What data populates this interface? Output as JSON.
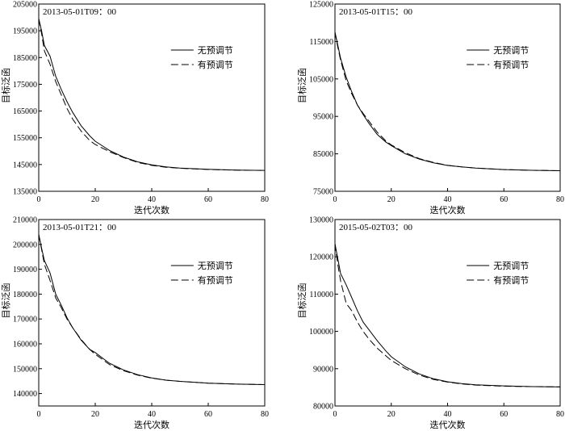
{
  "chart_data": [
    {
      "type": "line",
      "title": "2013-05-01T09：00",
      "xlabel": "迭代次数",
      "ylabel": "目标泛函",
      "xlim": [
        0,
        80
      ],
      "ylim": [
        135000,
        205000
      ],
      "xticks": [
        0,
        20,
        40,
        60,
        80
      ],
      "yticks": [
        135000,
        145000,
        155000,
        165000,
        175000,
        185000,
        195000,
        205000
      ],
      "legend": "center-right",
      "series": [
        {
          "name": "无预调节",
          "style": "solid",
          "x": [
            0,
            1,
            2,
            4,
            6,
            8,
            10,
            12,
            15,
            18,
            20,
            25,
            30,
            35,
            40,
            45,
            50,
            60,
            70,
            80
          ],
          "values": [
            199500,
            195000,
            189500,
            185500,
            178000,
            173000,
            168500,
            164500,
            159500,
            155800,
            153700,
            150300,
            147800,
            146000,
            144900,
            144100,
            143700,
            143200,
            142900,
            142800
          ]
        },
        {
          "name": "有预调节",
          "style": "dashed",
          "x": [
            0,
            1,
            2,
            4,
            6,
            8,
            10,
            12,
            15,
            18,
            20,
            25,
            30,
            35,
            40,
            45,
            50,
            60,
            70,
            80
          ],
          "values": [
            199500,
            194000,
            187500,
            182500,
            176000,
            171000,
            166000,
            162000,
            157500,
            154000,
            152500,
            149800,
            147600,
            145800,
            144700,
            144000,
            143600,
            143150,
            142900,
            142800
          ]
        }
      ]
    },
    {
      "type": "line",
      "title": "2013-05-01T15：00",
      "xlabel": "迭代次数",
      "ylabel": "目标泛函",
      "xlim": [
        0,
        80
      ],
      "ylim": [
        75000,
        125000
      ],
      "xticks": [
        0,
        20,
        40,
        60,
        80
      ],
      "yticks": [
        75000,
        85000,
        95000,
        105000,
        115000,
        125000
      ],
      "legend": "center-right",
      "series": [
        {
          "name": "无预调节",
          "style": "solid",
          "x": [
            0,
            1,
            2,
            4,
            6,
            8,
            10,
            12,
            15,
            18,
            20,
            25,
            30,
            35,
            40,
            45,
            50,
            60,
            70,
            80
          ],
          "values": [
            117500,
            114000,
            110500,
            105500,
            101500,
            98000,
            95500,
            93200,
            90200,
            88200,
            87200,
            85000,
            83600,
            82600,
            81900,
            81500,
            81200,
            80800,
            80600,
            80500
          ]
        },
        {
          "name": "有预调节",
          "style": "dashed",
          "x": [
            0,
            1,
            2,
            4,
            6,
            8,
            10,
            12,
            15,
            18,
            20,
            25,
            30,
            35,
            40,
            45,
            50,
            60,
            70,
            80
          ],
          "values": [
            117500,
            113500,
            110000,
            104500,
            101000,
            98000,
            95800,
            93800,
            90800,
            88500,
            87400,
            85300,
            83700,
            82700,
            81950,
            81500,
            81200,
            80800,
            80600,
            80500
          ]
        }
      ]
    },
    {
      "type": "line",
      "title": "2013-05-01T21：00",
      "xlabel": "迭代次数",
      "ylabel": "目标泛函",
      "xlim": [
        0,
        80
      ],
      "ylim": [
        135000,
        210000
      ],
      "xticks": [
        0,
        20,
        40,
        60,
        80
      ],
      "yticks": [
        140000,
        150000,
        160000,
        170000,
        180000,
        190000,
        200000,
        210000
      ],
      "legend": "center-right",
      "series": [
        {
          "name": "无预调节",
          "style": "solid",
          "x": [
            0,
            1,
            2,
            4,
            6,
            8,
            10,
            12,
            15,
            18,
            20,
            25,
            30,
            35,
            40,
            45,
            50,
            60,
            70,
            80
          ],
          "values": [
            204000,
            198500,
            193500,
            188500,
            180000,
            175500,
            170500,
            166500,
            161500,
            157800,
            156500,
            152200,
            149500,
            147600,
            146300,
            145400,
            144900,
            144200,
            143800,
            143600
          ]
        },
        {
          "name": "有预调节",
          "style": "dashed",
          "x": [
            0,
            1,
            2,
            4,
            6,
            8,
            10,
            12,
            15,
            18,
            20,
            25,
            30,
            35,
            40,
            45,
            50,
            60,
            70,
            80
          ],
          "values": [
            204000,
            198000,
            192000,
            185500,
            178500,
            174500,
            170000,
            166500,
            161800,
            157800,
            155800,
            151700,
            149200,
            147400,
            146200,
            145400,
            144900,
            144200,
            143800,
            143600
          ]
        }
      ]
    },
    {
      "type": "line",
      "title": "2015-05-02T03：00",
      "xlabel": "迭代次数",
      "ylabel": "目标泛函",
      "xlim": [
        0,
        80
      ],
      "ylim": [
        80000,
        130000
      ],
      "xticks": [
        0,
        20,
        40,
        60,
        80
      ],
      "yticks": [
        80000,
        90000,
        100000,
        110000,
        120000,
        130000
      ],
      "legend": "center-right",
      "series": [
        {
          "name": "无预调节",
          "style": "solid",
          "x": [
            0,
            1,
            2,
            4,
            6,
            8,
            10,
            12,
            15,
            18,
            20,
            25,
            30,
            35,
            40,
            45,
            50,
            60,
            70,
            80
          ],
          "values": [
            123500,
            119500,
            115500,
            112500,
            109000,
            105500,
            102500,
            100500,
            97500,
            94800,
            93200,
            90500,
            88600,
            87300,
            86500,
            86000,
            85700,
            85400,
            85200,
            85100
          ]
        },
        {
          "name": "有预调节",
          "style": "dashed",
          "x": [
            0,
            1,
            2,
            4,
            6,
            8,
            10,
            12,
            15,
            18,
            20,
            25,
            30,
            35,
            40,
            45,
            50,
            60,
            70,
            80
          ],
          "values": [
            123500,
            118000,
            113500,
            107500,
            105500,
            102500,
            100000,
            98000,
            95500,
            93500,
            92200,
            90000,
            88300,
            87100,
            86400,
            85900,
            85600,
            85300,
            85200,
            85100
          ]
        }
      ]
    }
  ]
}
